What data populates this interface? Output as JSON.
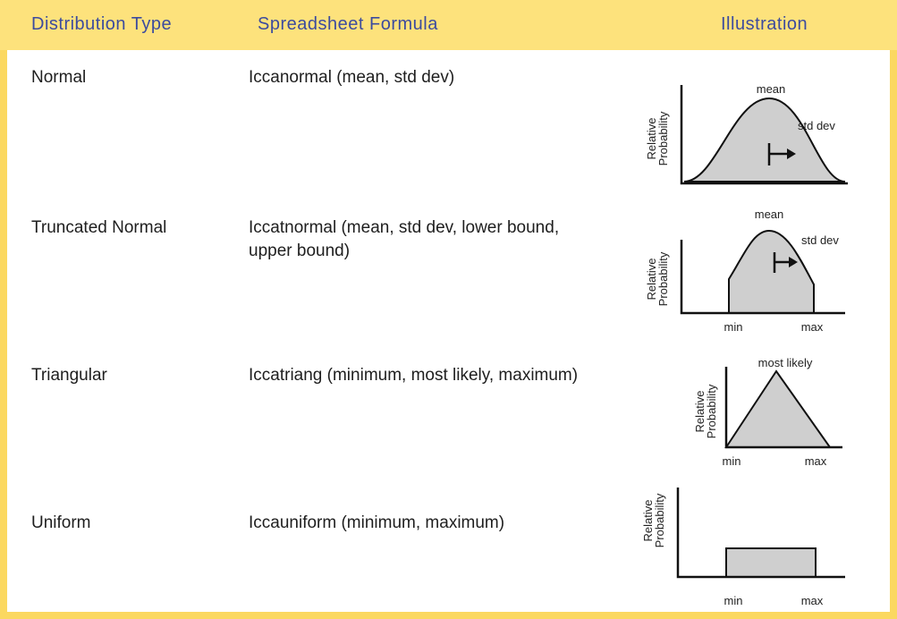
{
  "table": {
    "headers": [
      "Distribution Type",
      "Spreadsheet Formula",
      "Illustration"
    ],
    "rows": [
      {
        "type": "Normal",
        "formula": "Iccanormal (mean, std dev)",
        "illustration": {
          "y_label": [
            "Relative",
            "Probability"
          ],
          "labels": [
            "mean",
            "std dev"
          ]
        }
      },
      {
        "type": "Truncated Normal",
        "formula": "Iccatnormal (mean, std dev, lower bound, upper bound)",
        "illustration": {
          "y_label": [
            "Relative",
            "Probability"
          ],
          "labels": [
            "mean",
            "std dev",
            "min",
            "max"
          ]
        }
      },
      {
        "type": "Triangular",
        "formula": "Iccatriang (minimum, most likely, maximum)",
        "illustration": {
          "y_label": [
            "Relative",
            "Probability"
          ],
          "labels": [
            "most likely",
            "min",
            "max"
          ]
        }
      },
      {
        "type": "Uniform",
        "formula": "Iccauniform (minimum, maximum)",
        "illustration": {
          "y_label": [
            "Relative",
            "Probability"
          ],
          "labels": [
            "min",
            "max"
          ]
        }
      }
    ]
  }
}
